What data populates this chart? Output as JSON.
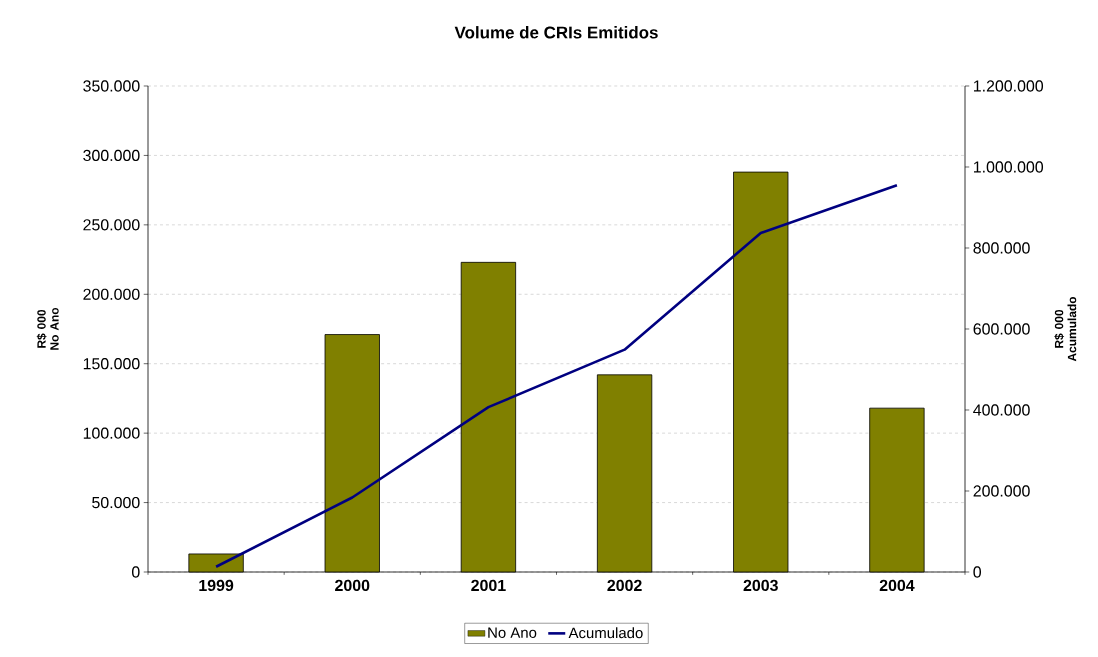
{
  "chart_data": {
    "type": "bar",
    "title": "Volume de CRIs Emitidos",
    "ylabel": "R$ 000 No Ano",
    "y2label": "R$ 000 Acumulado",
    "categories": [
      "1999",
      "2000",
      "2001",
      "2002",
      "2003",
      "2004"
    ],
    "series": [
      {
        "name": "No Ano",
        "color": "#808000",
        "values": [
          13000,
          171000,
          223000,
          142000,
          288000,
          118000
        ]
      },
      {
        "name": "Acumulado",
        "type": "line",
        "axis": "y2",
        "color": "#000080",
        "values": [
          13000,
          184000,
          407000,
          549000,
          837000,
          955000
        ]
      }
    ],
    "ylim": [
      0,
      350000
    ],
    "yticks": [
      0,
      {
        "value": 50000,
        "label": "50.000"
      },
      {
        "value": 100000,
        "label": "100.000"
      },
      {
        "value": 150000,
        "label": "150.000"
      },
      {
        "value": 200000,
        "label": "200.000"
      },
      {
        "value": 250000,
        "label": "250.000"
      },
      {
        "value": 300000,
        "label": "300.000"
      },
      {
        "value": 350000,
        "label": "350.000"
      }
    ],
    "y2lim": [
      0,
      1200000
    ],
    "y2ticks": [
      0,
      {
        "value": 200000,
        "label": "200.000"
      },
      {
        "value": 400000,
        "label": "400.000"
      },
      {
        "value": 600000,
        "label": "600.000"
      },
      {
        "value": 800000,
        "label": "800.000"
      },
      {
        "value": 1000000,
        "label": "1.000.000"
      },
      {
        "value": 1200000,
        "label": "1.200.000"
      }
    ],
    "grid": "y",
    "legend": "bottom",
    "marker": "none"
  }
}
